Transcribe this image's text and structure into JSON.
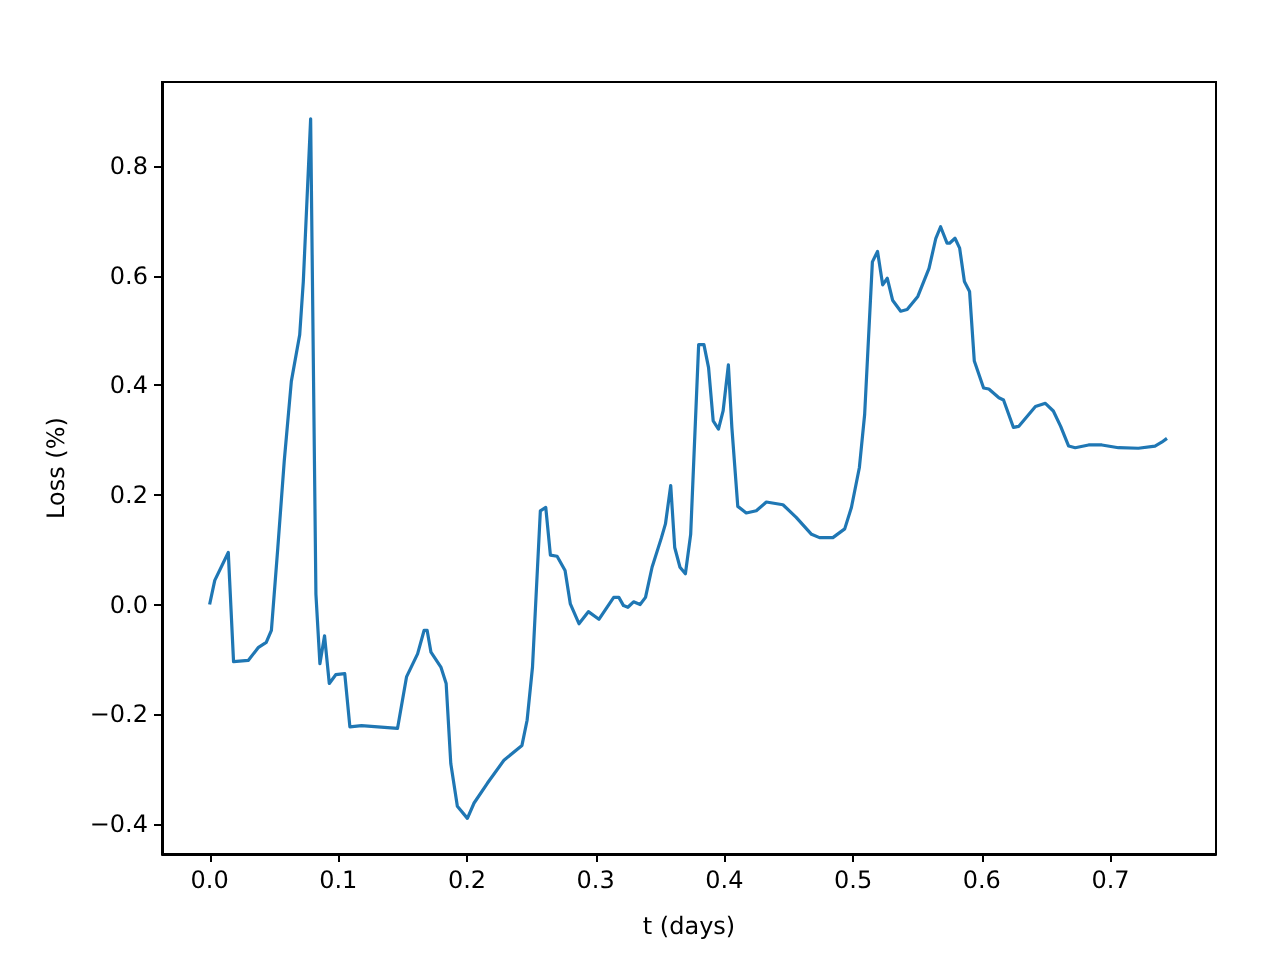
{
  "chart_data": {
    "type": "line",
    "xlabel": "t (days)",
    "ylabel": "Loss (%)",
    "xlim": [
      -0.037,
      0.782
    ],
    "ylim": [
      -0.455,
      0.953
    ],
    "xticks": [
      {
        "value": 0,
        "label": "0.0"
      },
      {
        "value": 0.1,
        "label": "0.1"
      },
      {
        "value": 0.2,
        "label": "0.2"
      },
      {
        "value": 0.3,
        "label": "0.3"
      },
      {
        "value": 0.4,
        "label": "0.4"
      },
      {
        "value": 0.5,
        "label": "0.5"
      },
      {
        "value": 0.6,
        "label": "0.6"
      },
      {
        "value": 0.7,
        "label": "0.7"
      }
    ],
    "yticks": [
      {
        "value": -0.4,
        "label": "−0.4"
      },
      {
        "value": -0.2,
        "label": "−0.2"
      },
      {
        "value": 0,
        "label": "0.0"
      },
      {
        "value": 0.2,
        "label": "0.2"
      },
      {
        "value": 0.4,
        "label": "0.4"
      },
      {
        "value": 0.6,
        "label": "0.6"
      },
      {
        "value": 0.8,
        "label": "0.8"
      }
    ],
    "grid": false,
    "line_style": "solid",
    "series": [
      {
        "color": "#1f77b4",
        "x": [
          0,
          0.004,
          0.0145,
          0.0186,
          0.03,
          0.038,
          0.044,
          0.048,
          0.053,
          0.058,
          0.0635,
          0.07,
          0.0728,
          0.0785,
          0.0826,
          0.0857,
          0.0893,
          0.093,
          0.098,
          0.105,
          0.109,
          0.118,
          0.146,
          0.153,
          0.1616,
          0.1667,
          0.169,
          0.172,
          0.1797,
          0.1838,
          0.1874,
          0.1925,
          0.2003,
          0.2055,
          0.2158,
          0.2287,
          0.2427,
          0.2467,
          0.2509,
          0.257,
          0.2612,
          0.2648,
          0.27,
          0.2762,
          0.2803,
          0.287,
          0.2943,
          0.3025,
          0.314,
          0.318,
          0.3216,
          0.325,
          0.3294,
          0.3345,
          0.3387,
          0.3438,
          0.3511,
          0.3542,
          0.3583,
          0.3614,
          0.3655,
          0.3697,
          0.3738,
          0.38,
          0.3841,
          0.3877,
          0.3913,
          0.3954,
          0.399,
          0.4031,
          0.4058,
          0.4104,
          0.417,
          0.4248,
          0.4326,
          0.4455,
          0.4558,
          0.4677,
          0.4739,
          0.4843,
          0.4935,
          0.4987,
          0.5049,
          0.509,
          0.515,
          0.519,
          0.523,
          0.5266,
          0.5307,
          0.537,
          0.542,
          0.5503,
          0.559,
          0.5643,
          0.568,
          0.573,
          0.575,
          0.5792,
          0.5828,
          0.5865,
          0.5905,
          0.5942,
          0.6014,
          0.6055,
          0.6133,
          0.6169,
          0.6246,
          0.6288,
          0.6417,
          0.6494,
          0.6556,
          0.6613,
          0.6675,
          0.6726,
          0.683,
          0.6933,
          0.7062,
          0.7217,
          0.7346,
          0.7398,
          0.7439
        ],
        "values": [
          0,
          0.044,
          0.095,
          -0.104,
          -0.102,
          -0.078,
          -0.069,
          -0.047,
          0.104,
          0.262,
          0.407,
          0.492,
          0.589,
          0.886,
          0.019,
          -0.108,
          -0.057,
          -0.144,
          -0.128,
          -0.126,
          -0.223,
          -0.221,
          -0.226,
          -0.132,
          -0.09,
          -0.047,
          -0.047,
          -0.087,
          -0.114,
          -0.144,
          -0.29,
          -0.368,
          -0.39,
          -0.362,
          -0.326,
          -0.284,
          -0.257,
          -0.211,
          -0.114,
          0.171,
          0.177,
          0.09,
          0.088,
          0.062,
          0.001,
          -0.035,
          -0.013,
          -0.027,
          0.013,
          0.013,
          -0.002,
          -0.005,
          0.005,
          0,
          0.013,
          0.068,
          0.122,
          0.147,
          0.217,
          0.104,
          0.068,
          0.056,
          0.128,
          0.474,
          0.474,
          0.432,
          0.335,
          0.32,
          0.353,
          0.437,
          0.323,
          0.179,
          0.167,
          0.171,
          0.187,
          0.182,
          0.159,
          0.128,
          0.122,
          0.122,
          0.138,
          0.177,
          0.25,
          0.347,
          0.625,
          0.644,
          0.583,
          0.595,
          0.555,
          0.535,
          0.538,
          0.562,
          0.613,
          0.668,
          0.689,
          0.659,
          0.659,
          0.668,
          0.65,
          0.589,
          0.571,
          0.444,
          0.395,
          0.393,
          0.377,
          0.373,
          0.323,
          0.325,
          0.361,
          0.367,
          0.353,
          0.325,
          0.289,
          0.286,
          0.291,
          0.291,
          0.286,
          0.285,
          0.289,
          0.296,
          0.303
        ]
      }
    ]
  }
}
